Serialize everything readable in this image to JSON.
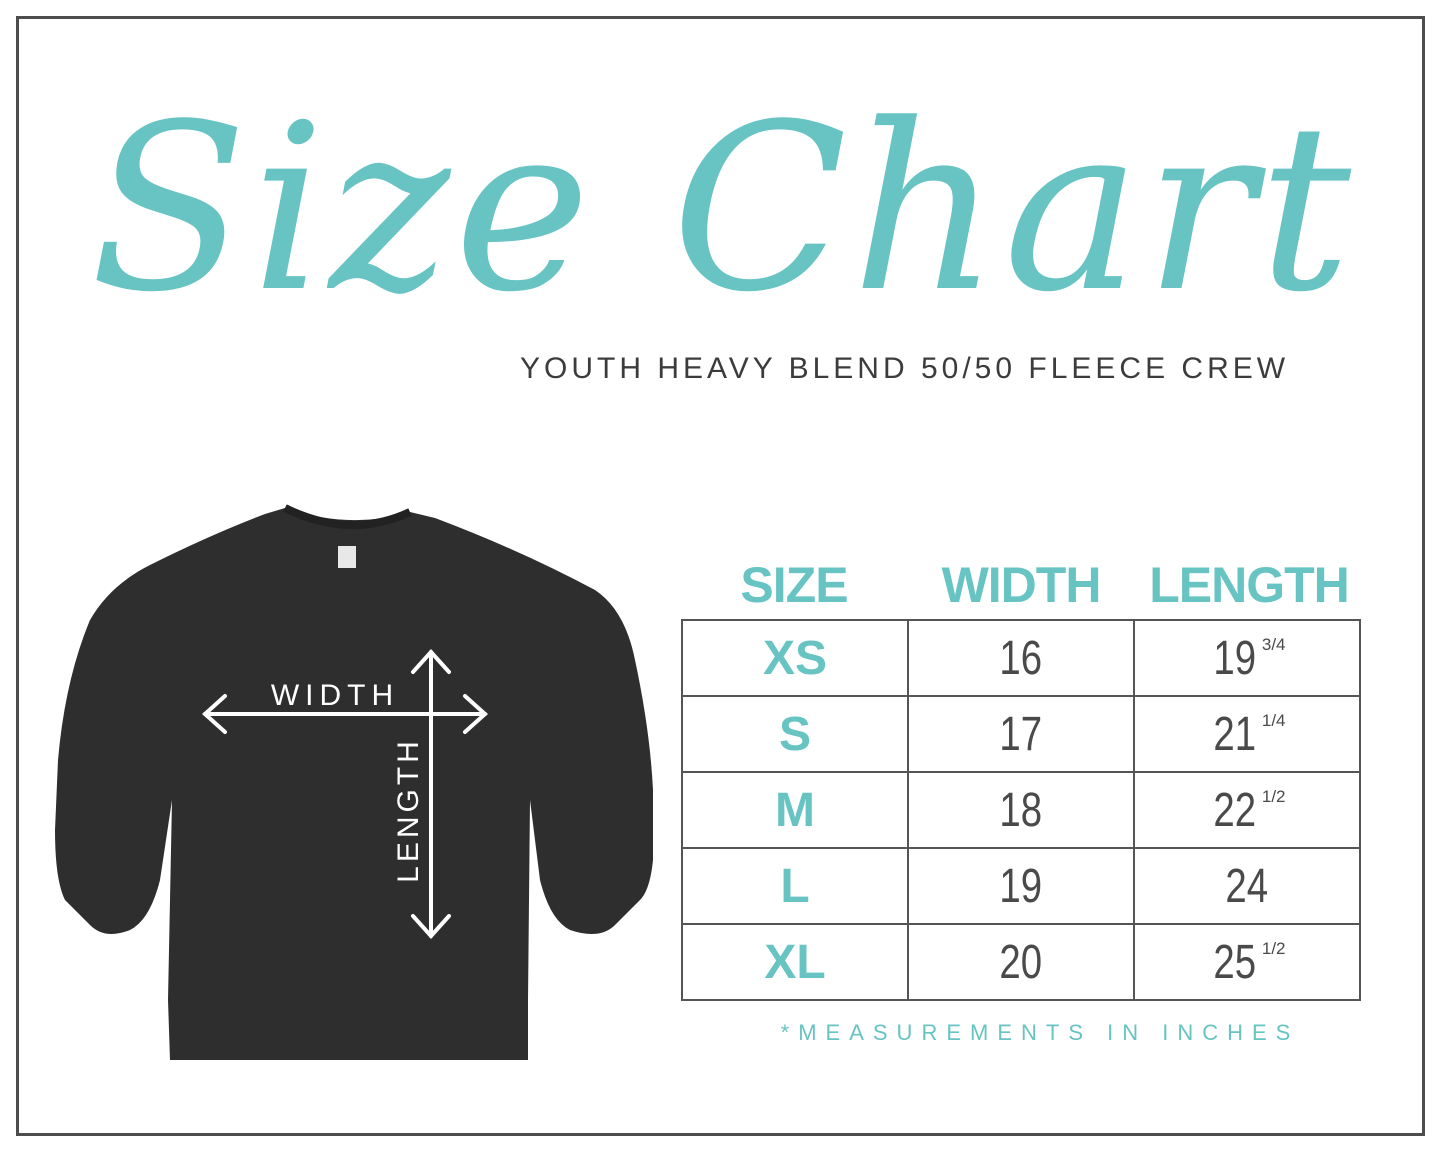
{
  "title": "Size Chart",
  "subtitle": "YOUTH HEAVY BLEND 50/50 FLEECE CREW",
  "diagram": {
    "width_label": "WIDTH",
    "length_label": "LENGTH",
    "garment_color": "#2e2e2e"
  },
  "colors": {
    "accent": "#67c4c3",
    "text": "#4a4a4a",
    "border": "#555555"
  },
  "table": {
    "headers": [
      "SIZE",
      "WIDTH",
      "LENGTH"
    ],
    "rows": [
      {
        "size": "XS",
        "width": "16",
        "length": "19",
        "length_fraction": "3/4"
      },
      {
        "size": "S",
        "width": "17",
        "length": "21",
        "length_fraction": "1/4"
      },
      {
        "size": "M",
        "width": "18",
        "length": "22",
        "length_fraction": "1/2"
      },
      {
        "size": "L",
        "width": "19",
        "length": "24",
        "length_fraction": ""
      },
      {
        "size": "XL",
        "width": "20",
        "length": "25",
        "length_fraction": "1/2"
      }
    ]
  },
  "footnote": "*MEASUREMENTS IN INCHES"
}
